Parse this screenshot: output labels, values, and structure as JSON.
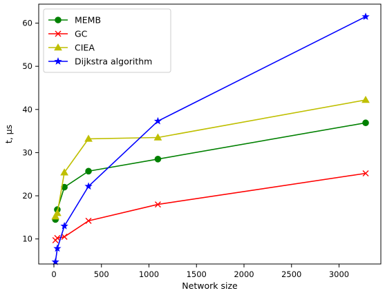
{
  "chart_data": {
    "type": "line",
    "title": "",
    "xlabel": "Network size",
    "ylabel": "t, µs",
    "xlim": [
      -160,
      3440
    ],
    "ylim": [
      4.2,
      64.4
    ],
    "xticks": [
      0,
      500,
      1000,
      1500,
      2000,
      2500,
      3000
    ],
    "yticks": [
      10,
      20,
      30,
      40,
      50,
      60
    ],
    "grid": false,
    "legend_position": "top-left",
    "x": [
      16,
      36,
      110,
      364,
      1094,
      3280
    ],
    "series": [
      {
        "name": "MEMB",
        "color": "#008000",
        "marker": "circle",
        "x": [
          16,
          36,
          110,
          364,
          1094,
          3280
        ],
        "values": [
          14.5,
          16.8,
          22.0,
          25.7,
          28.5,
          36.9
        ]
      },
      {
        "name": "GC",
        "color": "#ff0000",
        "marker": "x",
        "x": [
          16,
          36,
          110,
          364,
          1094,
          3280
        ],
        "values": [
          9.7,
          10.2,
          10.5,
          14.2,
          18.0,
          25.2
        ]
      },
      {
        "name": "CIEA",
        "color": "#bfbf00",
        "marker": "triangle",
        "x": [
          16,
          36,
          110,
          364,
          1094,
          3280
        ],
        "values": [
          15.2,
          16.0,
          25.4,
          33.2,
          33.5,
          42.2
        ]
      },
      {
        "name": "Dijkstra algorithm",
        "color": "#0000ff",
        "marker": "star",
        "x": [
          16,
          36,
          110,
          364,
          1094,
          3280
        ],
        "values": [
          4.7,
          7.8,
          13.0,
          22.2,
          37.3,
          61.5
        ]
      }
    ]
  }
}
